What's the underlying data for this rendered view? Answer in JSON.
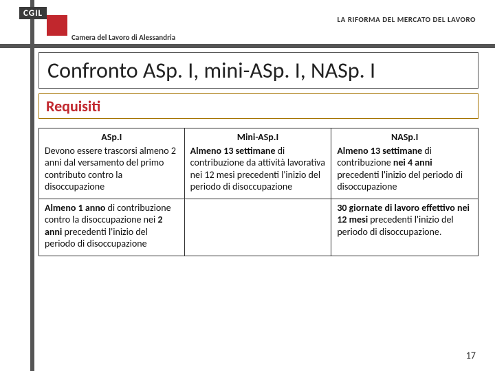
{
  "header": {
    "logo_text": "CGIL",
    "top_right": "LA RIFORMA DEL MERCATO DEL LAVORO",
    "subtitle": "Camera del Lavoro di Alessandria"
  },
  "title": "Confronto ASp. I, mini-ASp. I, NASp. I",
  "section": "Requisiti",
  "table": {
    "head1": "ASp.I",
    "head2": "Mini-ASp.I",
    "head3": "NASp.I",
    "r1c1": "Devono essere trascorsi almeno 2 anni dal versamento del primo contributo contro la disoccupazione",
    "r1c2_a": "Almeno 13 settimane",
    "r1c2_b": " di contribuzione da attività lavorativa nei 12 mesi precedenti l'inizio del periodo di disoccupazione",
    "r1c3_a": "Almeno 13 settimane",
    "r1c3_b": " di contribuzione ",
    "r1c3_c": "nei 4 anni",
    "r1c3_d": " precedenti l'inizio del periodo di disoccupazione",
    "r2c1_a": "Almeno 1 anno",
    "r2c1_b": " di contribuzione contro la disoccupazione nei ",
    "r2c1_c": "2 anni",
    "r2c1_d": " precedenti l'inizio del periodo di disoccupazione",
    "r2c3_a": "30 giornate di lavoro effettivo nei 12 mesi",
    "r2c3_b": " precedenti l'inizio del periodo di disoccupazione."
  },
  "page_number": "17"
}
